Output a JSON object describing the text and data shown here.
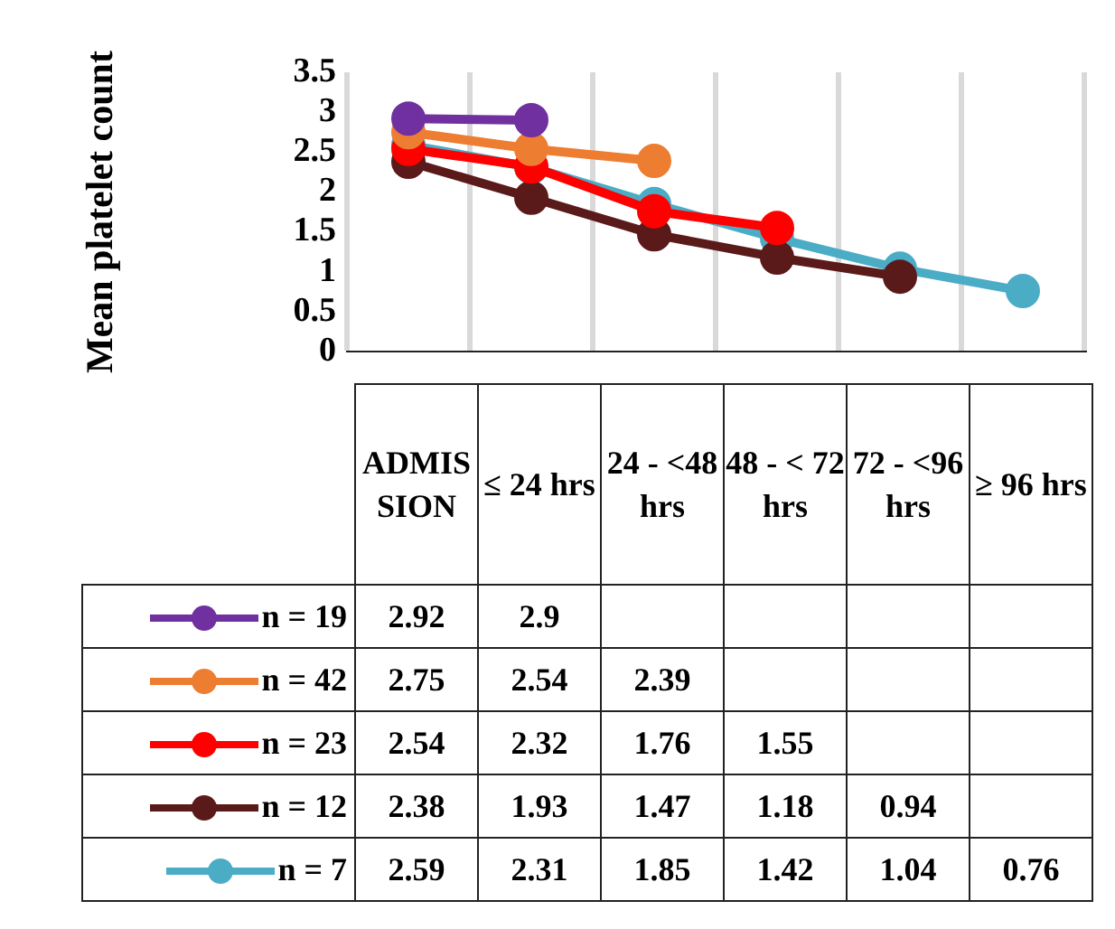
{
  "chart_data": {
    "type": "line",
    "ylabel": "Mean platelet count",
    "categories": [
      "ADMISSION",
      "≤ 24 hrs",
      "24 - <48 hrs",
      "48 - < 72 hrs",
      "72 - <96 hrs",
      "≥ 96 hrs"
    ],
    "series": [
      {
        "name": "n = 19",
        "color": "#7030a0",
        "values": [
          2.92,
          2.9,
          null,
          null,
          null,
          null
        ]
      },
      {
        "name": "n = 42",
        "color": "#ed7d31",
        "values": [
          2.75,
          2.54,
          2.39,
          null,
          null,
          null
        ]
      },
      {
        "name": "n = 23",
        "color": "#ff0000",
        "values": [
          2.54,
          2.32,
          1.76,
          1.55,
          null,
          null
        ]
      },
      {
        "name": "n = 12",
        "color": "#5b1a1a",
        "values": [
          2.38,
          1.93,
          1.47,
          1.18,
          0.94,
          null
        ]
      },
      {
        "name": "n = 7",
        "color": "#4bacc6",
        "values": [
          2.59,
          2.31,
          1.85,
          1.42,
          1.04,
          0.76
        ]
      }
    ],
    "ylim": [
      0,
      3.5
    ],
    "yticks": [
      0,
      0.5,
      1,
      1.5,
      2,
      2.5,
      3,
      3.5
    ],
    "grid": "x",
    "legend": "bottom",
    "marker": "circle",
    "data_labels": true
  }
}
